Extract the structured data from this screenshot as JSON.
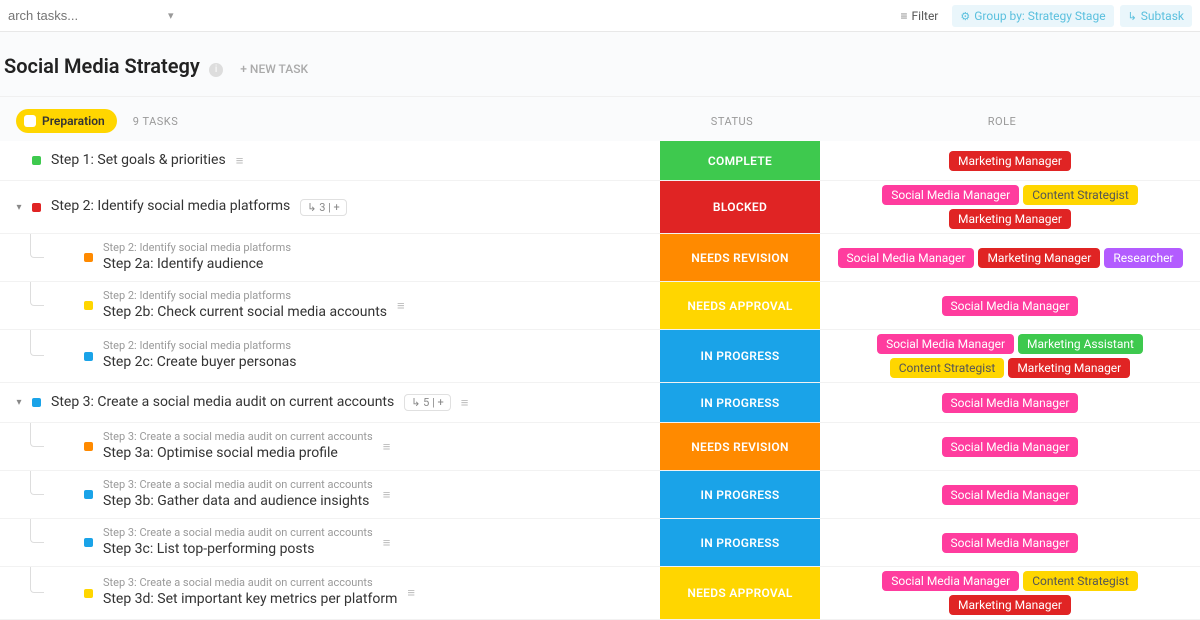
{
  "topbar": {
    "search_placeholder": "arch tasks...",
    "filter_label": "Filter",
    "groupby_label": "Group by: Strategy Stage",
    "subtask_label": "Subtask"
  },
  "header": {
    "title": "Social Media Strategy",
    "new_task": "+ NEW TASK"
  },
  "group": {
    "name": "Preparation",
    "pill_bg": "#ffd600",
    "count_label": "9 TASKS",
    "status_head": "STATUS",
    "role_head": "ROLE"
  },
  "colors": {
    "sq_green": "#3ec94e",
    "sq_red": "#e02424",
    "sq_orange": "#ff8a00",
    "sq_yellow": "#ffd600",
    "sq_blue": "#1aa3e8",
    "status_complete": "#3ec94e",
    "status_blocked": "#e02424",
    "status_needs_revision": "#ff8a00",
    "status_needs_approval": "#ffd600",
    "status_in_progress": "#1aa3e8",
    "role_pink": "#ff3c9e",
    "role_red": "#e02424",
    "role_yellow_bg": "#ffd600",
    "role_yellow_text": "#555555",
    "role_green": "#3ec94e",
    "role_purple": "#b35cff"
  },
  "status_labels": {
    "complete": "COMPLETE",
    "blocked": "BLOCKED",
    "needs_revision": "NEEDS REVISION",
    "needs_approval": "NEEDS APPROVAL",
    "in_progress": "IN PROGRESS"
  },
  "role_labels": {
    "marketing_manager": "Marketing Manager",
    "social_media_manager": "Social Media Manager",
    "content_strategist": "Content Strategist",
    "researcher": "Researcher",
    "marketing_assistant": "Marketing Assistant"
  },
  "tasks": [
    {
      "id": "t1",
      "indent": 0,
      "expander": "",
      "sq": "sq_green",
      "title": "Step 1: Set goals & priorities",
      "meta": null,
      "menu": true,
      "status": "complete",
      "roles": [
        {
          "label": "marketing_manager",
          "bg": "role_red"
        }
      ]
    },
    {
      "id": "t2",
      "indent": 0,
      "expander": "▾",
      "sq": "sq_red",
      "title": "Step 2: Identify social media platforms",
      "meta": "↳ 3 | +",
      "menu": false,
      "status": "blocked",
      "roles": [
        {
          "label": "social_media_manager",
          "bg": "role_pink"
        },
        {
          "label": "content_strategist",
          "bg": "role_yellow_bg",
          "text": "role_yellow_text"
        },
        {
          "label": "marketing_manager",
          "bg": "role_red"
        }
      ]
    },
    {
      "id": "t2a",
      "indent": 1,
      "expander": "",
      "sq": "sq_orange",
      "parent": "Step 2: Identify social media platforms",
      "title": "Step 2a: Identify audience",
      "meta": null,
      "menu": false,
      "status": "needs_revision",
      "roles": [
        {
          "label": "social_media_manager",
          "bg": "role_pink"
        },
        {
          "label": "marketing_manager",
          "bg": "role_red"
        },
        {
          "label": "researcher",
          "bg": "role_purple"
        }
      ]
    },
    {
      "id": "t2b",
      "indent": 1,
      "expander": "",
      "sq": "sq_yellow",
      "parent": "Step 2: Identify social media platforms",
      "title": "Step 2b: Check current social media accounts",
      "meta": null,
      "menu": true,
      "status": "needs_approval",
      "roles": [
        {
          "label": "social_media_manager",
          "bg": "role_pink"
        }
      ]
    },
    {
      "id": "t2c",
      "indent": 1,
      "expander": "",
      "sq": "sq_blue",
      "parent": "Step 2: Identify social media platforms",
      "title": "Step 2c: Create buyer personas",
      "meta": null,
      "menu": false,
      "status": "in_progress",
      "roles": [
        {
          "label": "social_media_manager",
          "bg": "role_pink"
        },
        {
          "label": "marketing_assistant",
          "bg": "role_green"
        },
        {
          "label": "content_strategist",
          "bg": "role_yellow_bg",
          "text": "role_yellow_text"
        },
        {
          "label": "marketing_manager",
          "bg": "role_red"
        }
      ]
    },
    {
      "id": "t3",
      "indent": 0,
      "expander": "▾",
      "sq": "sq_blue",
      "title": "Step 3: Create a social media audit on current accounts",
      "meta": "↳ 5 | +",
      "menu": true,
      "status": "in_progress",
      "roles": [
        {
          "label": "social_media_manager",
          "bg": "role_pink"
        }
      ]
    },
    {
      "id": "t3a",
      "indent": 1,
      "expander": "",
      "sq": "sq_orange",
      "parent": "Step 3: Create a social media audit on current accounts",
      "title": "Step 3a: Optimise social media profile",
      "meta": null,
      "menu": true,
      "status": "needs_revision",
      "roles": [
        {
          "label": "social_media_manager",
          "bg": "role_pink"
        }
      ]
    },
    {
      "id": "t3b",
      "indent": 1,
      "expander": "",
      "sq": "sq_blue",
      "parent": "Step 3: Create a social media audit on current accounts",
      "title": "Step 3b: Gather data and audience insights",
      "meta": null,
      "menu": true,
      "status": "in_progress",
      "roles": [
        {
          "label": "social_media_manager",
          "bg": "role_pink"
        }
      ]
    },
    {
      "id": "t3c",
      "indent": 1,
      "expander": "",
      "sq": "sq_blue",
      "parent": "Step 3: Create a social media audit on current accounts",
      "title": "Step 3c: List top-performing posts",
      "meta": null,
      "menu": true,
      "status": "in_progress",
      "roles": [
        {
          "label": "social_media_manager",
          "bg": "role_pink"
        }
      ]
    },
    {
      "id": "t3d",
      "indent": 1,
      "expander": "",
      "sq": "sq_yellow",
      "parent": "Step 3: Create a social media audit on current accounts",
      "title": "Step 3d: Set important key metrics per platform",
      "meta": null,
      "menu": true,
      "status": "needs_approval",
      "roles": [
        {
          "label": "social_media_manager",
          "bg": "role_pink"
        },
        {
          "label": "content_strategist",
          "bg": "role_yellow_bg",
          "text": "role_yellow_text"
        },
        {
          "label": "marketing_manager",
          "bg": "role_red"
        }
      ]
    }
  ]
}
